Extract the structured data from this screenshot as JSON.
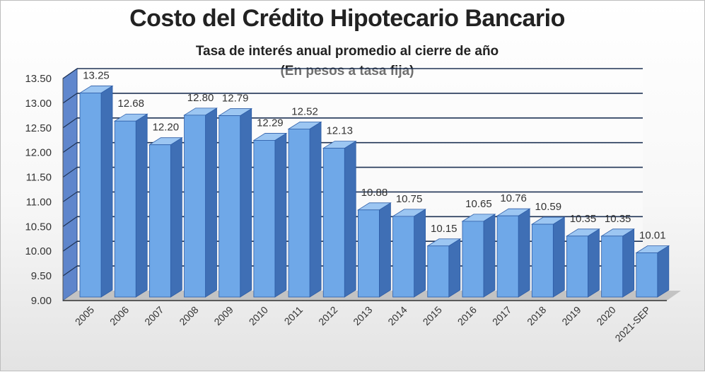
{
  "chart_data": {
    "type": "bar",
    "title": "Costo del Crédito Hipotecario Bancario",
    "subtitle_lines": [
      "Tasa de interés anual promedio al cierre de año",
      "(En pesos a tasa fija)"
    ],
    "categories": [
      "2005",
      "2006",
      "2007",
      "2008",
      "2009",
      "2010",
      "2011",
      "2012",
      "2013",
      "2014",
      "2015",
      "2016",
      "2017",
      "2018",
      "2019",
      "2020",
      "2021-SEP"
    ],
    "values": [
      13.25,
      12.68,
      12.2,
      12.8,
      12.79,
      12.29,
      12.52,
      12.13,
      10.88,
      10.75,
      10.15,
      10.65,
      10.76,
      10.59,
      10.35,
      10.35,
      10.01
    ],
    "value_labels": [
      "13.25",
      "12.68",
      "12.20",
      "12.80",
      "12.79",
      "12.29",
      "12.52",
      "12.13",
      "10.88",
      "10.75",
      "10.15",
      "10.65",
      "10.76",
      "10.59",
      "10.35",
      "10.35",
      "10.01"
    ],
    "y_ticks": [
      "9.00",
      "9.50",
      "10.00",
      "10.50",
      "11.00",
      "11.50",
      "12.00",
      "12.50",
      "13.00",
      "13.50"
    ],
    "ylim": [
      9.0,
      13.5
    ],
    "xlabel": "",
    "ylabel": "",
    "grid": true,
    "legend": "none",
    "style": "3d-column",
    "colors": {
      "bar_front": "#6fa8e8",
      "bar_side": "#3f6fb5",
      "bar_top": "#9cc6f2",
      "bar_stroke": "#2e5ea8",
      "grid": "#1f3355",
      "wall": "#4472c4",
      "floor": "#bfbfbf"
    }
  }
}
